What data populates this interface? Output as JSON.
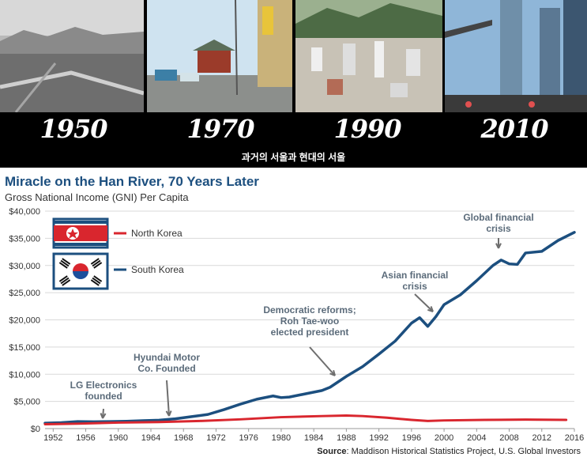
{
  "banner": {
    "decades": [
      "1950",
      "1970",
      "1990",
      "2010"
    ],
    "caption": "과거의 서울과 현대의 서울"
  },
  "colors": {
    "south_korea": "#1c4f7f",
    "north_korea": "#d9262e",
    "title": "#1c4f7f",
    "annotation": "#5b6b7a"
  },
  "chart_data": {
    "type": "line",
    "title": "Miracle on the Han River, 70 Years Later",
    "subtitle": "Gross National Income (GNI) Per Capita",
    "ylim": [
      0,
      40000
    ],
    "xlim": [
      1951,
      2016
    ],
    "y_ticks": [
      "$0",
      "$5,000",
      "$10,000",
      "$15,000",
      "$20,000",
      "$25,000",
      "$30,000",
      "$35,000",
      "$40,000"
    ],
    "x_ticks": [
      "1952",
      "1956",
      "1960",
      "1964",
      "1968",
      "1972",
      "1976",
      "1980",
      "1984",
      "1988",
      "1992",
      "1996",
      "2000",
      "2004",
      "2008",
      "2012",
      "2016"
    ],
    "legend": [
      {
        "name": "North Korea",
        "flag": "north-korea-flag"
      },
      {
        "name": "South Korea",
        "flag": "south-korea-flag"
      }
    ],
    "series": [
      {
        "name": "South Korea",
        "x": [
          1951,
          1953,
          1955,
          1957,
          1959,
          1961,
          1963,
          1965,
          1967,
          1969,
          1971,
          1973,
          1975,
          1977,
          1979,
          1980,
          1981,
          1983,
          1985,
          1986,
          1987,
          1988,
          1990,
          1992,
          1994,
          1996,
          1997,
          1998,
          1999,
          2000,
          2002,
          2004,
          2006,
          2007,
          2008,
          2009,
          2010,
          2012,
          2014,
          2016
        ],
        "y": [
          1000,
          1100,
          1300,
          1250,
          1300,
          1350,
          1450,
          1550,
          1800,
          2200,
          2600,
          3500,
          4500,
          5400,
          6000,
          5700,
          5800,
          6400,
          7000,
          7600,
          8600,
          9600,
          11400,
          13700,
          16100,
          19400,
          20400,
          18800,
          20600,
          22800,
          24600,
          27200,
          30000,
          31000,
          30300,
          30200,
          32300,
          32600,
          34600,
          36100
        ]
      },
      {
        "name": "North Korea",
        "x": [
          1951,
          1955,
          1960,
          1965,
          1970,
          1975,
          1980,
          1985,
          1988,
          1990,
          1993,
          1996,
          1998,
          2000,
          2005,
          2010,
          2015
        ],
        "y": [
          800,
          900,
          1100,
          1200,
          1400,
          1700,
          2100,
          2300,
          2400,
          2300,
          2000,
          1600,
          1400,
          1500,
          1600,
          1650,
          1600
        ]
      }
    ],
    "annotations": [
      {
        "text": [
          "LG Electronics",
          "founded"
        ],
        "year": 1958,
        "value": 1000
      },
      {
        "text": [
          "Hyundai Motor",
          "Co. Founded"
        ],
        "year": 1966,
        "value": 1600
      },
      {
        "text": [
          "Democratic reforms;",
          "Roh Tae-woo",
          "elected president"
        ],
        "year": 1987,
        "value": 9000
      },
      {
        "text": [
          "Asian financial",
          "crisis"
        ],
        "year": 1998,
        "value": 21000
      },
      {
        "text": [
          "Global financial",
          "crisis"
        ],
        "year": 2008,
        "value": 31000
      }
    ]
  },
  "source": {
    "label": "Source",
    "text": ": Maddison Historical Statistics Project, U.S. Global Investors"
  }
}
